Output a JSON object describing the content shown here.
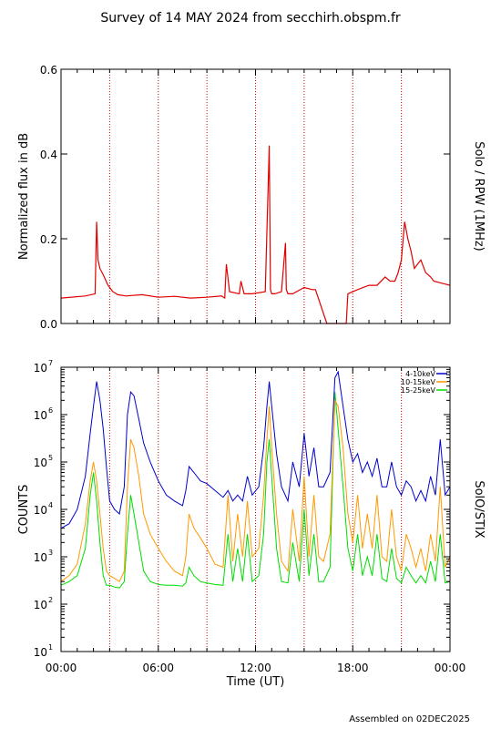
{
  "header": {
    "title": "Survey of 14 MAY 2024 from secchirh.obspm.fr"
  },
  "footer": {
    "assembled": "Assembled on 02DEC2025"
  },
  "x_axis": {
    "label": "Time (UT)",
    "ticks": [
      "00:00",
      "06:00",
      "12:00",
      "18:00",
      "00:00"
    ],
    "tick_hours": [
      0,
      6,
      12,
      18,
      24
    ],
    "range_hours": [
      0,
      24
    ],
    "dotted_lines_hours": [
      3,
      6,
      9,
      12,
      15,
      18,
      21
    ]
  },
  "chart_data": [
    {
      "type": "line",
      "ylabel": "Normalized flux in dB",
      "right_label": "Solo / RPW (1MHz)",
      "ylim": [
        0,
        0.6
      ],
      "ytick_values": [
        0,
        0.2,
        0.4,
        0.6
      ],
      "ytick_labels": [
        "0.0",
        "0.2",
        "0.4",
        "0.6"
      ],
      "grid": false,
      "series": [
        {
          "color": "#e00000",
          "x": [
            0,
            1.5,
            2.1,
            2.2,
            2.28,
            2.4,
            2.6,
            2.9,
            3.2,
            3.5,
            4.0,
            5.0,
            6.0,
            7.0,
            8.0,
            9.0,
            9.9,
            10.1,
            10.2,
            10.4,
            11.0,
            11.1,
            11.3,
            11.8,
            12.6,
            12.85,
            12.92,
            13.0,
            13.2,
            13.6,
            13.85,
            13.9,
            14.0,
            14.3,
            15.0,
            15.5,
            15.7,
            16.4,
            16.5,
            16.9,
            17.6,
            17.7,
            18.3,
            19.0,
            19.5,
            20.0,
            20.3,
            20.6,
            20.8,
            21.0,
            21.2,
            21.4,
            21.6,
            21.8,
            22.0,
            22.2,
            22.5,
            22.8,
            23.0,
            23.5,
            24.0
          ],
          "y": [
            0.06,
            0.065,
            0.07,
            0.24,
            0.15,
            0.13,
            0.115,
            0.09,
            0.075,
            0.068,
            0.065,
            0.068,
            0.062,
            0.064,
            0.06,
            0.062,
            0.065,
            0.06,
            0.14,
            0.075,
            0.07,
            0.1,
            0.07,
            0.07,
            0.075,
            0.42,
            0.08,
            0.07,
            0.07,
            0.075,
            0.19,
            0.08,
            0.07,
            0.07,
            0.085,
            0.08,
            0.08,
            0.0,
            0.0,
            0.0,
            0.0,
            0.07,
            0.08,
            0.09,
            0.09,
            0.11,
            0.1,
            0.1,
            0.12,
            0.15,
            0.24,
            0.2,
            0.17,
            0.13,
            0.14,
            0.15,
            0.12,
            0.11,
            0.1,
            0.095,
            0.09
          ]
        }
      ]
    },
    {
      "type": "line",
      "ylabel": "COUNTS",
      "right_label": "SolO/STIX",
      "yscale": "log",
      "ylim": [
        10,
        10000000
      ],
      "ytick_values": [
        10,
        100,
        1000,
        10000,
        100000,
        1000000,
        10000000
      ],
      "ytick_base": "10",
      "ytick_exponents": [
        "1",
        "2",
        "3",
        "4",
        "5",
        "6",
        "7"
      ],
      "grid": false,
      "legend": "top-right",
      "series": [
        {
          "name": "4-10keV",
          "color": "#0000cc",
          "x": [
            0,
            0.5,
            1.0,
            1.5,
            1.8,
            2.0,
            2.2,
            2.4,
            2.6,
            2.8,
            3.0,
            3.3,
            3.6,
            3.9,
            4.1,
            4.3,
            4.5,
            4.8,
            5.1,
            5.5,
            6.0,
            6.5,
            7.0,
            7.5,
            7.7,
            7.9,
            8.2,
            8.6,
            9.0,
            9.5,
            10.0,
            10.3,
            10.6,
            10.9,
            11.2,
            11.5,
            11.8,
            12.2,
            12.5,
            12.7,
            12.85,
            13.0,
            13.3,
            13.6,
            14.0,
            14.3,
            14.7,
            15.0,
            15.3,
            15.6,
            15.9,
            16.2,
            16.6,
            16.9,
            17.1,
            17.4,
            17.7,
            18.0,
            18.3,
            18.6,
            18.9,
            19.2,
            19.5,
            19.8,
            20.1,
            20.4,
            20.7,
            21.0,
            21.3,
            21.6,
            21.9,
            22.2,
            22.5,
            22.8,
            23.1,
            23.4,
            23.7,
            24.0
          ],
          "y": [
            4000,
            5000,
            10000,
            50000,
            400000,
            1500000,
            5000000,
            2000000,
            500000,
            80000,
            15000,
            10000,
            8000,
            30000,
            1000000,
            3000000,
            2500000,
            800000,
            250000,
            100000,
            40000,
            20000,
            15000,
            12000,
            25000,
            80000,
            60000,
            40000,
            35000,
            25000,
            18000,
            25000,
            15000,
            20000,
            15000,
            50000,
            20000,
            30000,
            200000,
            1500000,
            5000000,
            1500000,
            150000,
            30000,
            15000,
            100000,
            30000,
            400000,
            50000,
            200000,
            30000,
            30000,
            60000,
            6000000,
            8000000,
            1500000,
            300000,
            100000,
            150000,
            60000,
            100000,
            50000,
            120000,
            30000,
            30000,
            100000,
            30000,
            20000,
            40000,
            30000,
            15000,
            25000,
            15000,
            50000,
            20000,
            300000,
            20000,
            30000
          ]
        },
        {
          "name": "10-15keV",
          "color": "#ff9900",
          "x": [
            0,
            0.5,
            1.0,
            1.5,
            1.8,
            2.0,
            2.2,
            2.4,
            2.6,
            2.8,
            3.0,
            3.3,
            3.6,
            3.9,
            4.1,
            4.3,
            4.5,
            4.8,
            5.1,
            5.5,
            6.0,
            6.5,
            7.0,
            7.5,
            7.7,
            7.9,
            8.2,
            8.6,
            9.0,
            9.5,
            10.0,
            10.3,
            10.6,
            10.9,
            11.2,
            11.5,
            11.8,
            12.2,
            12.5,
            12.7,
            12.85,
            13.0,
            13.3,
            13.6,
            14.0,
            14.3,
            14.7,
            15.0,
            15.3,
            15.6,
            15.9,
            16.2,
            16.6,
            16.9,
            17.1,
            17.4,
            17.7,
            18.0,
            18.3,
            18.6,
            18.9,
            19.2,
            19.5,
            19.8,
            20.1,
            20.4,
            20.7,
            21.0,
            21.3,
            21.6,
            21.9,
            22.2,
            22.5,
            22.8,
            23.1,
            23.4,
            23.7,
            24.0
          ],
          "y": [
            300,
            400,
            700,
            5000,
            40000,
            100000,
            40000,
            8000,
            1500,
            500,
            400,
            350,
            300,
            500,
            30000,
            300000,
            200000,
            50000,
            8000,
            3000,
            1500,
            800,
            500,
            400,
            1000,
            8000,
            4000,
            2500,
            1500,
            700,
            600,
            20000,
            800,
            8000,
            1000,
            15000,
            1000,
            1500,
            20000,
            300000,
            1500000,
            200000,
            8000,
            800,
            500,
            10000,
            800,
            50000,
            1000,
            20000,
            1000,
            800,
            3000,
            2000000,
            1500000,
            200000,
            8000,
            2000,
            20000,
            1500,
            8000,
            1500,
            20000,
            1000,
            800,
            10000,
            1000,
            500,
            3000,
            1500,
            600,
            1500,
            500,
            3000,
            800,
            30000,
            600,
            1000
          ]
        },
        {
          "name": "15-25keV",
          "color": "#00dd00",
          "x": [
            0,
            0.5,
            1.0,
            1.5,
            1.8,
            2.0,
            2.2,
            2.4,
            2.6,
            2.8,
            3.0,
            3.3,
            3.6,
            3.9,
            4.1,
            4.3,
            4.5,
            4.8,
            5.1,
            5.5,
            6.0,
            6.5,
            7.0,
            7.5,
            7.7,
            7.9,
            8.2,
            8.6,
            9.0,
            9.5,
            10.0,
            10.3,
            10.6,
            10.9,
            11.2,
            11.5,
            11.8,
            12.2,
            12.5,
            12.7,
            12.85,
            13.0,
            13.3,
            13.6,
            14.0,
            14.3,
            14.7,
            15.0,
            15.3,
            15.6,
            15.9,
            16.2,
            16.6,
            16.9,
            17.1,
            17.4,
            17.7,
            18.0,
            18.3,
            18.6,
            18.9,
            19.2,
            19.5,
            19.8,
            20.1,
            20.4,
            20.7,
            21.0,
            21.3,
            21.6,
            21.9,
            22.2,
            22.5,
            22.8,
            23.1,
            23.4,
            23.7,
            24.0
          ],
          "y": [
            250,
            300,
            400,
            1500,
            20000,
            60000,
            15000,
            2000,
            400,
            250,
            250,
            230,
            220,
            300,
            3000,
            20000,
            8000,
            2000,
            500,
            300,
            260,
            250,
            250,
            240,
            280,
            600,
            400,
            300,
            280,
            260,
            250,
            3000,
            300,
            1500,
            300,
            3000,
            300,
            400,
            3000,
            100000,
            300000,
            50000,
            1500,
            300,
            280,
            2000,
            300,
            10000,
            400,
            3000,
            300,
            300,
            600,
            3000000,
            500000,
            30000,
            1500,
            500,
            3000,
            400,
            1000,
            400,
            3000,
            350,
            300,
            1500,
            350,
            280,
            600,
            400,
            280,
            400,
            280,
            800,
            300,
            3000,
            280,
            300
          ]
        }
      ]
    }
  ]
}
